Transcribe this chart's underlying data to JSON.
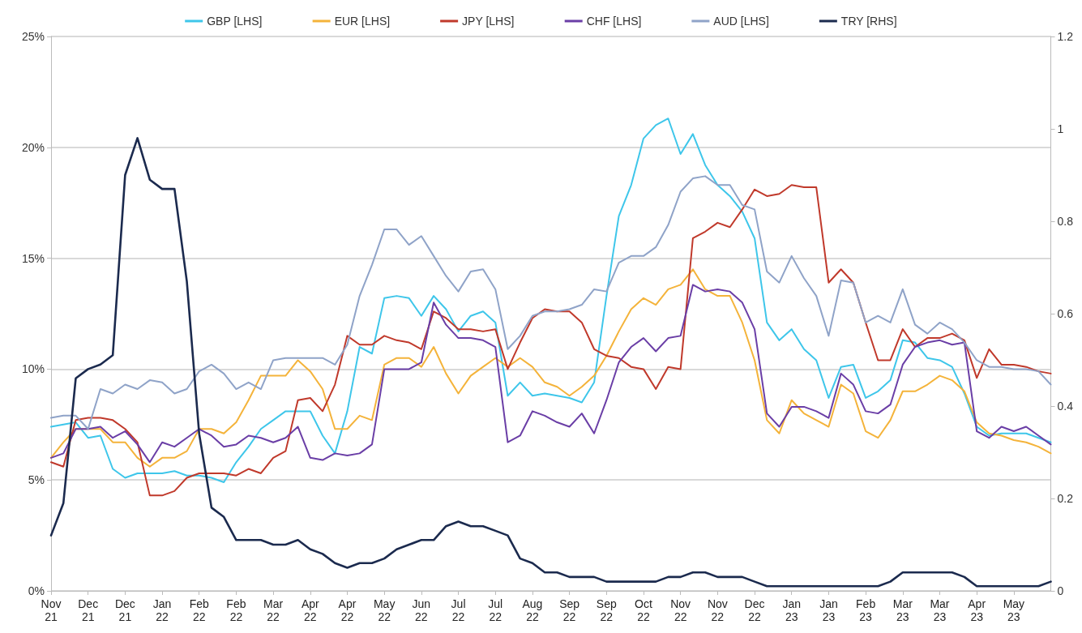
{
  "chart_data": {
    "type": "line",
    "categories": [
      "Nov 21",
      null,
      null,
      "Dec 21",
      null,
      null,
      "Dec 21",
      null,
      null,
      "Jan 22",
      null,
      null,
      "Feb 22",
      null,
      null,
      "Feb 22",
      null,
      null,
      "Mar 22",
      null,
      null,
      "Apr 22",
      null,
      null,
      "Apr 22",
      null,
      null,
      "May 22",
      null,
      null,
      "Jun 22",
      null,
      null,
      "Jul 22",
      null,
      null,
      "Jul 22",
      null,
      null,
      "Aug 22",
      null,
      null,
      "Sep 22",
      null,
      null,
      "Sep 22",
      null,
      null,
      "Oct 22",
      null,
      null,
      "Nov 22",
      null,
      null,
      "Nov 22",
      null,
      null,
      "Dec 22",
      null,
      null,
      "Jan 23",
      null,
      null,
      "Jan 23",
      null,
      null,
      "Feb 23",
      null,
      null,
      "Mar 23",
      null,
      null,
      "Mar 23",
      null,
      null,
      "Apr 23",
      null,
      null,
      "May 23",
      null,
      null,
      null
    ],
    "series": [
      {
        "name": "GBP [LHS]",
        "color": "#3ec6ea",
        "values": [
          7.4,
          7.5,
          7.6,
          6.9,
          7.0,
          5.5,
          5.1,
          5.3,
          5.3,
          5.3,
          5.4,
          5.2,
          5.2,
          5.1,
          4.9,
          5.8,
          6.5,
          7.3,
          7.7,
          8.1,
          8.1,
          8.1,
          7.0,
          6.2,
          8.1,
          11.0,
          10.7,
          13.2,
          13.3,
          13.2,
          12.4,
          13.3,
          12.7,
          11.7,
          12.4,
          12.6,
          12.1,
          8.8,
          9.4,
          8.8,
          8.9,
          8.8,
          8.7,
          8.5,
          9.4,
          13.3,
          16.9,
          18.3,
          20.4,
          21.0,
          21.3,
          19.7,
          20.6,
          19.2,
          18.3,
          17.8,
          17.1,
          15.9,
          12.1,
          11.3,
          11.8,
          10.9,
          10.4,
          8.7,
          10.1,
          10.2,
          8.7,
          9.0,
          9.5,
          11.3,
          11.2,
          10.5,
          10.4,
          10.1,
          8.9,
          7.4,
          7.0,
          7.1,
          7.1,
          7.1,
          6.9,
          6.7
        ]
      },
      {
        "name": "EUR [LHS]",
        "color": "#f4b33a",
        "values": [
          6.0,
          6.7,
          7.3,
          7.3,
          7.3,
          6.7,
          6.7,
          6.0,
          5.6,
          6.0,
          6.0,
          6.3,
          7.3,
          7.3,
          7.1,
          7.6,
          8.6,
          9.7,
          9.7,
          9.7,
          10.4,
          9.9,
          9.1,
          7.3,
          7.3,
          7.9,
          7.7,
          10.2,
          10.5,
          10.5,
          10.1,
          11.0,
          9.8,
          8.9,
          9.7,
          10.1,
          10.5,
          10.1,
          10.5,
          10.1,
          9.4,
          9.2,
          8.8,
          9.2,
          9.7,
          10.6,
          11.7,
          12.7,
          13.2,
          12.9,
          13.6,
          13.8,
          14.5,
          13.6,
          13.3,
          13.3,
          12.1,
          10.4,
          7.7,
          7.1,
          8.6,
          8.0,
          7.7,
          7.4,
          9.3,
          8.9,
          7.2,
          6.9,
          7.7,
          9.0,
          9.0,
          9.3,
          9.7,
          9.5,
          9.0,
          7.6,
          7.1,
          7.0,
          6.8,
          6.7,
          6.5,
          6.2
        ]
      },
      {
        "name": "JPY [LHS]",
        "color": "#c0392b",
        "values": [
          5.8,
          5.6,
          7.7,
          7.8,
          7.8,
          7.7,
          7.3,
          6.7,
          4.3,
          4.3,
          4.5,
          5.1,
          5.3,
          5.3,
          5.3,
          5.2,
          5.5,
          5.3,
          6.0,
          6.3,
          8.6,
          8.7,
          8.1,
          9.3,
          11.5,
          11.1,
          11.1,
          11.5,
          11.3,
          11.2,
          10.9,
          12.6,
          12.3,
          11.8,
          11.8,
          11.7,
          11.8,
          10.0,
          11.2,
          12.3,
          12.7,
          12.6,
          12.6,
          12.1,
          10.9,
          10.6,
          10.5,
          10.1,
          10.0,
          9.1,
          10.1,
          10.0,
          15.9,
          16.2,
          16.6,
          16.4,
          17.2,
          18.1,
          17.8,
          17.9,
          18.3,
          18.2,
          18.2,
          13.9,
          14.5,
          13.9,
          12.1,
          10.4,
          10.4,
          11.8,
          11.0,
          11.4,
          11.4,
          11.6,
          11.3,
          9.6,
          10.9,
          10.2,
          10.2,
          10.1,
          9.9,
          9.8
        ]
      },
      {
        "name": "CHF [LHS]",
        "color": "#6a3ea6",
        "values": [
          6.0,
          6.2,
          7.3,
          7.3,
          7.4,
          6.9,
          7.2,
          6.6,
          5.8,
          6.7,
          6.5,
          6.9,
          7.3,
          7.0,
          6.5,
          6.6,
          7.0,
          6.9,
          6.7,
          6.9,
          7.4,
          6.0,
          5.9,
          6.2,
          6.1,
          6.2,
          6.6,
          10.0,
          10.0,
          10.0,
          10.3,
          13.0,
          12.0,
          11.4,
          11.4,
          11.3,
          11.0,
          6.7,
          7.0,
          8.1,
          7.9,
          7.6,
          7.4,
          8.0,
          7.1,
          8.6,
          10.3,
          11.0,
          11.4,
          10.8,
          11.4,
          11.5,
          13.8,
          13.5,
          13.6,
          13.5,
          13.0,
          11.8,
          8.0,
          7.4,
          8.3,
          8.3,
          8.1,
          7.8,
          9.8,
          9.3,
          8.1,
          8.0,
          8.4,
          10.2,
          11.0,
          11.2,
          11.3,
          11.1,
          11.2,
          7.2,
          6.9,
          7.4,
          7.2,
          7.4,
          7.0,
          6.6
        ]
      },
      {
        "name": "AUD [LHS]",
        "color": "#8fa3c8",
        "values": [
          7.8,
          7.9,
          7.9,
          7.3,
          9.1,
          8.9,
          9.3,
          9.1,
          9.5,
          9.4,
          8.9,
          9.1,
          9.9,
          10.2,
          9.8,
          9.1,
          9.4,
          9.1,
          10.4,
          10.5,
          10.5,
          10.5,
          10.5,
          10.2,
          11.1,
          13.3,
          14.7,
          16.3,
          16.3,
          15.6,
          16.0,
          15.1,
          14.2,
          13.5,
          14.4,
          14.5,
          13.6,
          10.9,
          11.5,
          12.4,
          12.6,
          12.6,
          12.7,
          12.9,
          13.6,
          13.5,
          14.8,
          15.1,
          15.1,
          15.5,
          16.5,
          18.0,
          18.6,
          18.7,
          18.3,
          18.3,
          17.4,
          17.2,
          14.4,
          13.9,
          15.1,
          14.1,
          13.3,
          11.5,
          14.0,
          13.9,
          12.1,
          12.4,
          12.1,
          13.6,
          12.0,
          11.6,
          12.1,
          11.8,
          11.2,
          10.4,
          10.1,
          10.1,
          10.0,
          10.0,
          9.9,
          9.3
        ]
      },
      {
        "name": "TRY [RHS]",
        "color": "#1b2a4e",
        "axis": "y2",
        "values": [
          0.12,
          0.19,
          0.46,
          0.48,
          0.49,
          0.51,
          0.9,
          0.98,
          0.89,
          0.87,
          0.87,
          0.67,
          0.34,
          0.18,
          0.16,
          0.11,
          0.11,
          0.11,
          0.1,
          0.1,
          0.11,
          0.09,
          0.08,
          0.06,
          0.05,
          0.06,
          0.06,
          0.07,
          0.09,
          0.1,
          0.11,
          0.11,
          0.14,
          0.15,
          0.14,
          0.14,
          0.13,
          0.12,
          0.07,
          0.06,
          0.04,
          0.04,
          0.03,
          0.03,
          0.03,
          0.02,
          0.02,
          0.02,
          0.02,
          0.02,
          0.03,
          0.03,
          0.04,
          0.04,
          0.03,
          0.03,
          0.03,
          0.02,
          0.01,
          0.01,
          0.01,
          0.01,
          0.01,
          0.01,
          0.01,
          0.01,
          0.01,
          0.01,
          0.02,
          0.04,
          0.04,
          0.04,
          0.04,
          0.04,
          0.03,
          0.01,
          0.01,
          0.01,
          0.01,
          0.01,
          0.01,
          0.02
        ]
      }
    ],
    "ylim": [
      0,
      25
    ],
    "yticks": [
      {
        "value": 0,
        "label": "0%"
      },
      {
        "value": 5,
        "label": "5%"
      },
      {
        "value": 10,
        "label": "10%"
      },
      {
        "value": 15,
        "label": "15%"
      },
      {
        "value": 20,
        "label": "20%"
      },
      {
        "value": 25,
        "label": "25%"
      }
    ],
    "y2lim": [
      0,
      1.2
    ],
    "y2ticks": [
      0,
      0.2,
      0.4,
      0.6,
      0.8,
      1,
      1.2
    ],
    "grid": "y",
    "legend": "top",
    "marker": "none",
    "line_style": "solid"
  }
}
